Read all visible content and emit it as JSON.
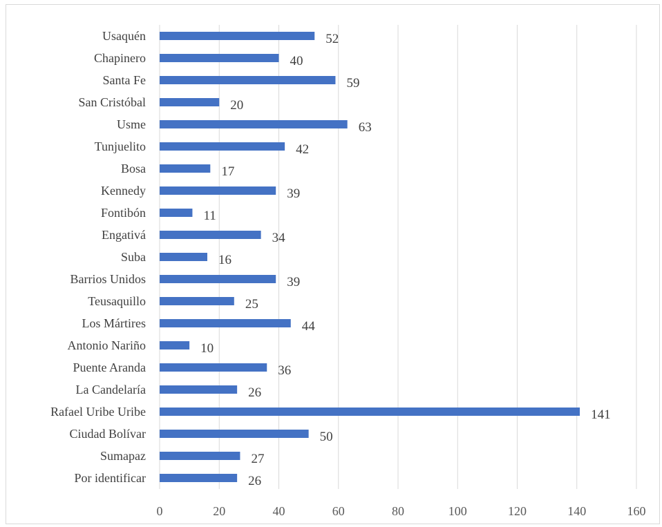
{
  "chart_data": {
    "type": "bar",
    "orientation": "horizontal",
    "categories": [
      "Usaquén",
      "Chapinero",
      "Santa Fe",
      "San Cristóbal",
      "Usme",
      "Tunjuelito",
      "Bosa",
      "Kennedy",
      "Fontibón",
      "Engativá",
      "Suba",
      "Barrios Unidos",
      "Teusaquillo",
      "Los Mártires",
      "Antonio Nariño",
      "Puente Aranda",
      "La Candelaría",
      "Rafael Uribe Uribe",
      "Ciudad Bolívar",
      "Sumapaz",
      "Por identificar"
    ],
    "values": [
      52,
      40,
      59,
      20,
      63,
      42,
      17,
      39,
      11,
      34,
      16,
      39,
      25,
      44,
      10,
      36,
      26,
      141,
      50,
      27,
      26
    ],
    "xlim": [
      0,
      160
    ],
    "xticks": [
      "0",
      "20",
      "40",
      "60",
      "80",
      "100",
      "120",
      "140",
      "160"
    ],
    "grid": "vertical",
    "legend": "none",
    "bar_color": "#4472c4",
    "grid_color": "#d9d9d9",
    "title": "",
    "xlabel": "",
    "ylabel": ""
  }
}
